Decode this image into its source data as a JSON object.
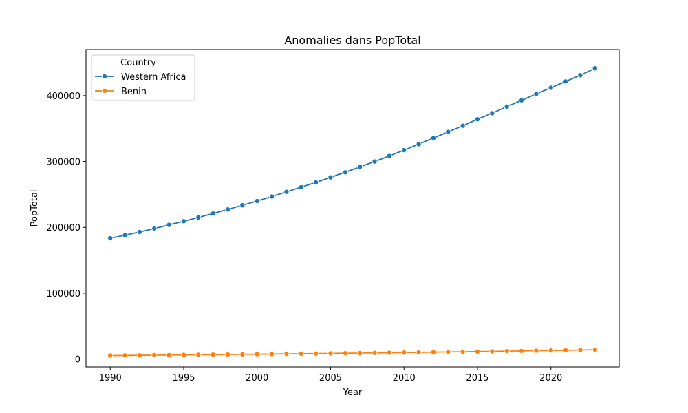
{
  "chart_data": {
    "type": "line",
    "title": "Anomalies dans PopTotal",
    "xlabel": "Year",
    "ylabel": "PopTotal",
    "xlim": [
      1988.35,
      2024.65
    ],
    "ylim": [
      -12000,
      470000
    ],
    "xticks": [
      1990,
      1995,
      2000,
      2005,
      2010,
      2015,
      2020
    ],
    "yticks": [
      0,
      100000,
      200000,
      300000,
      400000
    ],
    "grid": false,
    "legend": {
      "title": "Country",
      "position": "top-left"
    },
    "x": [
      1990,
      1991,
      1992,
      1993,
      1994,
      1995,
      1996,
      1997,
      1998,
      1999,
      2000,
      2001,
      2002,
      2003,
      2004,
      2005,
      2006,
      2007,
      2008,
      2009,
      2010,
      2011,
      2012,
      2013,
      2014,
      2015,
      2016,
      2017,
      2018,
      2019,
      2020,
      2021,
      2022,
      2023
    ],
    "series": [
      {
        "name": "Western Africa",
        "color": "#1f77b4",
        "values": [
          183500,
          188000,
          193000,
          198200,
          203800,
          209300,
          215000,
          221000,
          227200,
          233500,
          240000,
          246800,
          253900,
          261000,
          268200,
          275900,
          283600,
          291800,
          300000,
          308400,
          317300,
          326300,
          335600,
          345000,
          354300,
          364200,
          373400,
          383300,
          392900,
          402600,
          412000,
          421500,
          431000,
          441500
        ]
      },
      {
        "name": "Benin",
        "color": "#ff7f0e",
        "values": [
          5200,
          5400,
          5600,
          5800,
          6000,
          6200,
          6400,
          6600,
          6800,
          7000,
          7200,
          7400,
          7700,
          7900,
          8200,
          8400,
          8700,
          8900,
          9200,
          9500,
          9700,
          10000,
          10300,
          10600,
          10900,
          11200,
          11500,
          11900,
          12200,
          12600,
          12900,
          13200,
          13600,
          14000
        ]
      }
    ]
  }
}
